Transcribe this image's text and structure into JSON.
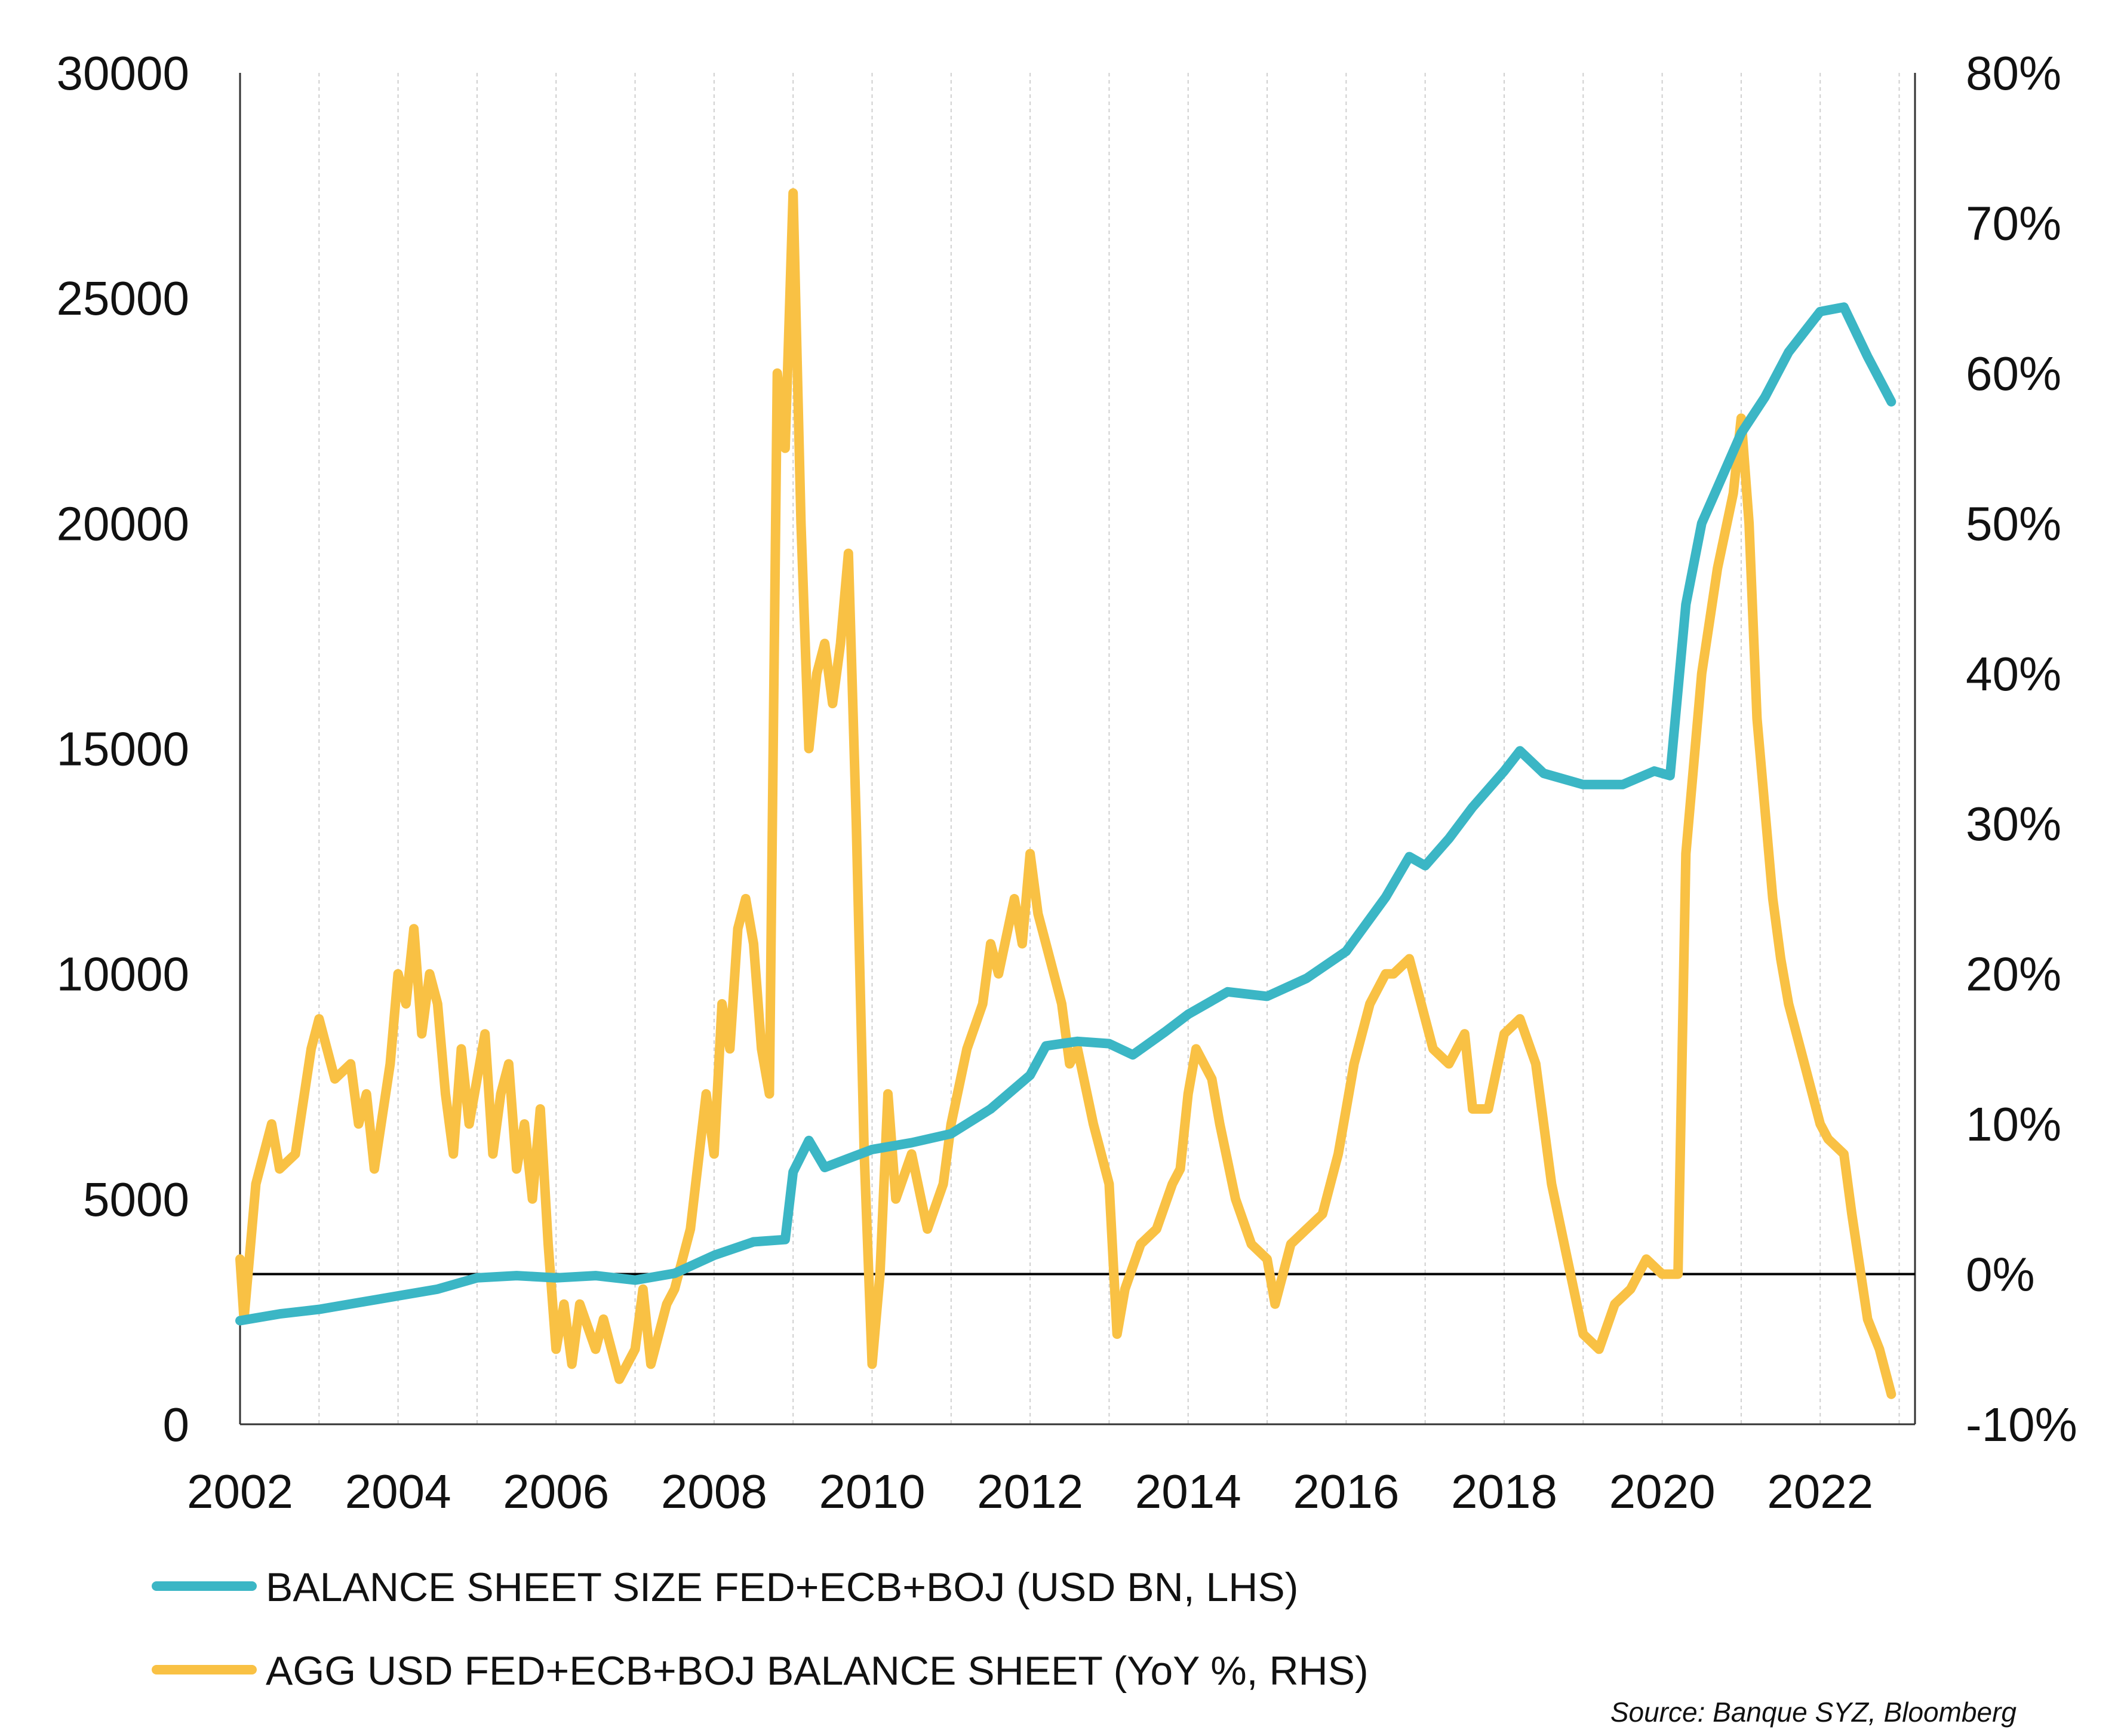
{
  "chart_data": {
    "type": "line",
    "xlim": [
      2002,
      2023.2
    ],
    "x_ticks": [
      "2002",
      "2004",
      "2006",
      "2008",
      "2010",
      "2012",
      "2014",
      "2016",
      "2018",
      "2020",
      "2022"
    ],
    "y_left": {
      "lim": [
        0,
        30000
      ],
      "ticks": [
        "0",
        "5000",
        "10000",
        "15000",
        "20000",
        "25000",
        "30000"
      ]
    },
    "y_right": {
      "lim": [
        -10,
        80
      ],
      "ticks": [
        "-10%",
        "0%",
        "10%",
        "20%",
        "30%",
        "40%",
        "50%",
        "60%",
        "70%",
        "80%"
      ]
    },
    "grid_x": true,
    "zero_line_right": 0,
    "legend": {
      "position": "bottom-left",
      "items": [
        {
          "label": "BALANCE SHEET SIZE FED+ECB+BOJ (USD BN, LHS)",
          "color": "#3BB6C5"
        },
        {
          "label": "AGG USD FED+ECB+BOJ BALANCE SHEET (YoY %, RHS)",
          "color": "#F9C144"
        }
      ]
    },
    "source": "Source: Banque SYZ, Bloomberg",
    "series": [
      {
        "name": "BALANCE SHEET SIZE FED+ECB+BOJ (USD BN, LHS)",
        "axis": "left",
        "color": "#3BB6C5",
        "points": [
          [
            2002.0,
            2300
          ],
          [
            2002.5,
            2450
          ],
          [
            2003.0,
            2550
          ],
          [
            2003.5,
            2700
          ],
          [
            2004.0,
            2850
          ],
          [
            2004.5,
            3000
          ],
          [
            2005.0,
            3250
          ],
          [
            2005.5,
            3300
          ],
          [
            2006.0,
            3250
          ],
          [
            2006.5,
            3300
          ],
          [
            2007.0,
            3200
          ],
          [
            2007.5,
            3350
          ],
          [
            2008.0,
            3750
          ],
          [
            2008.5,
            4050
          ],
          [
            2008.9,
            4100
          ],
          [
            2009.0,
            5600
          ],
          [
            2009.2,
            6300
          ],
          [
            2009.4,
            5700
          ],
          [
            2009.7,
            5900
          ],
          [
            2010.0,
            6100
          ],
          [
            2010.5,
            6250
          ],
          [
            2011.0,
            6450
          ],
          [
            2011.5,
            7000
          ],
          [
            2012.0,
            7750
          ],
          [
            2012.2,
            8400
          ],
          [
            2012.6,
            8500
          ],
          [
            2013.0,
            8450
          ],
          [
            2013.3,
            8200
          ],
          [
            2013.7,
            8700
          ],
          [
            2014.0,
            9100
          ],
          [
            2014.5,
            9600
          ],
          [
            2015.0,
            9500
          ],
          [
            2015.5,
            9900
          ],
          [
            2016.0,
            10500
          ],
          [
            2016.5,
            11700
          ],
          [
            2016.8,
            12600
          ],
          [
            2017.0,
            12400
          ],
          [
            2017.3,
            13000
          ],
          [
            2017.6,
            13700
          ],
          [
            2018.0,
            14500
          ],
          [
            2018.2,
            14950
          ],
          [
            2018.5,
            14450
          ],
          [
            2019.0,
            14200
          ],
          [
            2019.5,
            14200
          ],
          [
            2019.9,
            14500
          ],
          [
            2020.1,
            14400
          ],
          [
            2020.3,
            18200
          ],
          [
            2020.5,
            20000
          ],
          [
            2020.8,
            21200
          ],
          [
            2021.0,
            22000
          ],
          [
            2021.3,
            22800
          ],
          [
            2021.6,
            23800
          ],
          [
            2022.0,
            24700
          ],
          [
            2022.3,
            24800
          ],
          [
            2022.6,
            23700
          ],
          [
            2022.9,
            22700
          ]
        ]
      },
      {
        "name": "AGG USD FED+ECB+BOJ BALANCE SHEET (YoY %, RHS)",
        "axis": "right",
        "color": "#F9C144",
        "points": [
          [
            2002.0,
            1
          ],
          [
            2002.05,
            -3
          ],
          [
            2002.2,
            6
          ],
          [
            2002.4,
            10
          ],
          [
            2002.5,
            7
          ],
          [
            2002.7,
            8
          ],
          [
            2002.9,
            15
          ],
          [
            2003.0,
            17
          ],
          [
            2003.2,
            13
          ],
          [
            2003.4,
            14
          ],
          [
            2003.5,
            10
          ],
          [
            2003.6,
            12
          ],
          [
            2003.7,
            7
          ],
          [
            2003.9,
            14
          ],
          [
            2004.0,
            20
          ],
          [
            2004.1,
            18
          ],
          [
            2004.2,
            23
          ],
          [
            2004.3,
            16
          ],
          [
            2004.4,
            20
          ],
          [
            2004.5,
            18
          ],
          [
            2004.6,
            12
          ],
          [
            2004.7,
            8
          ],
          [
            2004.8,
            15
          ],
          [
            2004.9,
            10
          ],
          [
            2005.0,
            13
          ],
          [
            2005.1,
            16
          ],
          [
            2005.2,
            8
          ],
          [
            2005.3,
            12
          ],
          [
            2005.4,
            14
          ],
          [
            2005.5,
            7
          ],
          [
            2005.6,
            10
          ],
          [
            2005.7,
            5
          ],
          [
            2005.8,
            11
          ],
          [
            2005.9,
            2
          ],
          [
            2006.0,
            -5
          ],
          [
            2006.1,
            -2
          ],
          [
            2006.2,
            -6
          ],
          [
            2006.3,
            -2
          ],
          [
            2006.5,
            -5
          ],
          [
            2006.6,
            -3
          ],
          [
            2006.8,
            -7
          ],
          [
            2007.0,
            -5
          ],
          [
            2007.1,
            -1
          ],
          [
            2007.2,
            -6
          ],
          [
            2007.4,
            -2
          ],
          [
            2007.5,
            -1
          ],
          [
            2007.7,
            3
          ],
          [
            2007.9,
            12
          ],
          [
            2008.0,
            8
          ],
          [
            2008.1,
            18
          ],
          [
            2008.2,
            15
          ],
          [
            2008.3,
            23
          ],
          [
            2008.4,
            25
          ],
          [
            2008.5,
            22
          ],
          [
            2008.6,
            15
          ],
          [
            2008.7,
            12
          ],
          [
            2008.8,
            60
          ],
          [
            2008.9,
            55
          ],
          [
            2009.0,
            72
          ],
          [
            2009.1,
            50
          ],
          [
            2009.2,
            35
          ],
          [
            2009.3,
            40
          ],
          [
            2009.4,
            42
          ],
          [
            2009.5,
            38
          ],
          [
            2009.6,
            42
          ],
          [
            2009.7,
            48
          ],
          [
            2009.8,
            30
          ],
          [
            2009.9,
            8
          ],
          [
            2010.0,
            -6
          ],
          [
            2010.1,
            0
          ],
          [
            2010.2,
            12
          ],
          [
            2010.3,
            5
          ],
          [
            2010.5,
            8
          ],
          [
            2010.7,
            3
          ],
          [
            2010.9,
            6
          ],
          [
            2011.0,
            10
          ],
          [
            2011.2,
            15
          ],
          [
            2011.4,
            18
          ],
          [
            2011.5,
            22
          ],
          [
            2011.6,
            20
          ],
          [
            2011.8,
            25
          ],
          [
            2011.9,
            22
          ],
          [
            2012.0,
            28
          ],
          [
            2012.1,
            24
          ],
          [
            2012.2,
            22
          ],
          [
            2012.4,
            18
          ],
          [
            2012.5,
            14
          ],
          [
            2012.6,
            15
          ],
          [
            2012.8,
            10
          ],
          [
            2013.0,
            6
          ],
          [
            2013.1,
            -4
          ],
          [
            2013.2,
            -1
          ],
          [
            2013.4,
            2
          ],
          [
            2013.6,
            3
          ],
          [
            2013.8,
            6
          ],
          [
            2013.9,
            7
          ],
          [
            2014.0,
            12
          ],
          [
            2014.1,
            15
          ],
          [
            2014.3,
            13
          ],
          [
            2014.4,
            10
          ],
          [
            2014.6,
            5
          ],
          [
            2014.8,
            2
          ],
          [
            2015.0,
            1
          ],
          [
            2015.1,
            -2
          ],
          [
            2015.3,
            2
          ],
          [
            2015.5,
            3
          ],
          [
            2015.7,
            4
          ],
          [
            2015.9,
            8
          ],
          [
            2016.0,
            11
          ],
          [
            2016.1,
            14
          ],
          [
            2016.3,
            18
          ],
          [
            2016.5,
            20
          ],
          [
            2016.6,
            20
          ],
          [
            2016.8,
            21
          ],
          [
            2017.0,
            17
          ],
          [
            2017.1,
            15
          ],
          [
            2017.3,
            14
          ],
          [
            2017.5,
            16
          ],
          [
            2017.6,
            11
          ],
          [
            2017.8,
            11
          ],
          [
            2018.0,
            16
          ],
          [
            2018.2,
            17
          ],
          [
            2018.4,
            14
          ],
          [
            2018.6,
            6
          ],
          [
            2018.8,
            1
          ],
          [
            2019.0,
            -4
          ],
          [
            2019.2,
            -5
          ],
          [
            2019.4,
            -2
          ],
          [
            2019.6,
            -1
          ],
          [
            2019.8,
            1
          ],
          [
            2020.0,
            0
          ],
          [
            2020.2,
            0
          ],
          [
            2020.3,
            28
          ],
          [
            2020.5,
            40
          ],
          [
            2020.7,
            47
          ],
          [
            2020.9,
            52
          ],
          [
            2021.0,
            57
          ],
          [
            2021.1,
            50
          ],
          [
            2021.2,
            37
          ],
          [
            2021.4,
            25
          ],
          [
            2021.5,
            21
          ],
          [
            2021.6,
            18
          ],
          [
            2021.8,
            14
          ],
          [
            2022.0,
            10
          ],
          [
            2022.1,
            9
          ],
          [
            2022.3,
            8
          ],
          [
            2022.4,
            4
          ],
          [
            2022.6,
            -3
          ],
          [
            2022.75,
            -5
          ],
          [
            2022.9,
            -8
          ]
        ]
      }
    ]
  }
}
